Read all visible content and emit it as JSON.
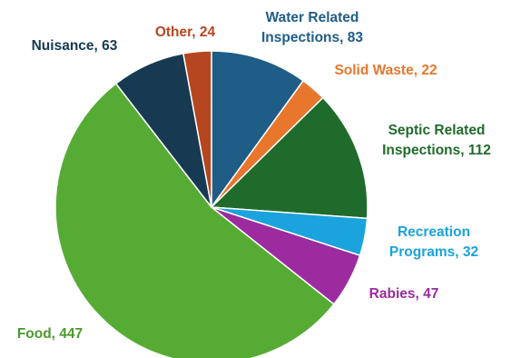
{
  "chart_data": {
    "type": "pie",
    "title": "",
    "start_angle_deg": 0,
    "direction": "clockwise",
    "slices": [
      {
        "label": "Water Related Inspections",
        "value": 83,
        "color": "#1f5d87",
        "label_lines": [
          "Water Related",
          "Inspections, 83"
        ],
        "label_color": "#1f5d87"
      },
      {
        "label": "Solid Waste",
        "value": 22,
        "color": "#e8762d",
        "label_lines": [
          "Solid Waste, 22"
        ],
        "label_color": "#e8762d"
      },
      {
        "label": "Septic Related Inspections",
        "value": 112,
        "color": "#1f6b2b",
        "label_lines": [
          "Septic Related",
          "Inspections, 112"
        ],
        "label_color": "#1f6b2b"
      },
      {
        "label": "Recreation Programs",
        "value": 32,
        "color": "#1aa3dc",
        "label_lines": [
          "Recreation",
          "Programs, 32"
        ],
        "label_color": "#1aa3dc"
      },
      {
        "label": "Rabies",
        "value": 47,
        "color": "#9b2b9e",
        "label_lines": [
          "Rabies, 47"
        ],
        "label_color": "#9b2b9e"
      },
      {
        "label": "Food",
        "value": 447,
        "color": "#56ab35",
        "label_lines": [
          "Food, 447"
        ],
        "label_color": "#4a9a2c"
      },
      {
        "label": "Nuisance",
        "value": 63,
        "color": "#173a52",
        "label_lines": [
          "Nuisance, 63"
        ],
        "label_color": "#173a52"
      },
      {
        "label": "Other",
        "value": 24,
        "color": "#b5461f",
        "label_lines": [
          "Other, 24"
        ],
        "label_color": "#b5461f"
      }
    ]
  }
}
